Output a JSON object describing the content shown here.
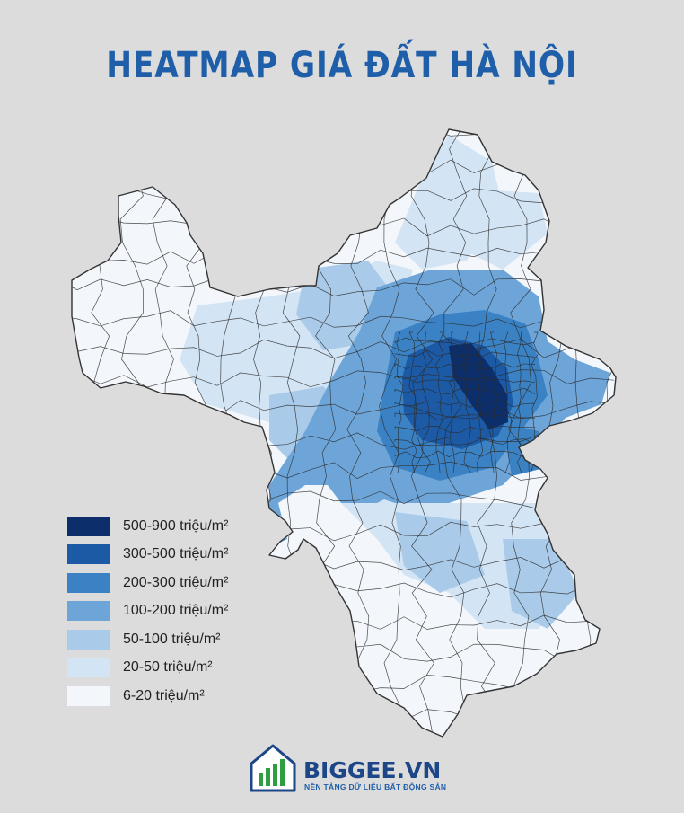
{
  "title": "HEATMAP GIÁ ĐẤT HÀ NỘI",
  "legend": [
    {
      "label": "500-900 triệu/m²",
      "color": "#0c2e6b"
    },
    {
      "label": "300-500 triệu/m²",
      "color": "#1c5aa6"
    },
    {
      "label": "200-300 triệu/m²",
      "color": "#3b82c4"
    },
    {
      "label": "100-200 triệu/m²",
      "color": "#6da5d9"
    },
    {
      "label": "50-100 triệu/m²",
      "color": "#a9cbe9"
    },
    {
      "label": "20-50 triệu/m²",
      "color": "#d3e4f4"
    },
    {
      "label": "6-20 triệu/m²",
      "color": "#f3f7fc"
    }
  ],
  "colors": {
    "background": "#dcdcdc",
    "title": "#1f5ea8",
    "logo_green": "#2e9e3e",
    "logo_blue": "#1c4687"
  },
  "logo": {
    "name": "BIGGEE.VN",
    "tagline": "NỀN TẢNG DỮ LIỆU BẤT ĐỘNG SẢN"
  }
}
